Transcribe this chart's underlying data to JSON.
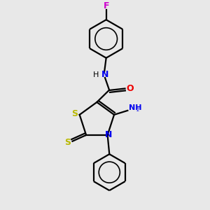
{
  "background_color": "#e8e8e8",
  "line_color": "#000000",
  "S_color": "#b8b800",
  "N_color": "#0000ee",
  "O_color": "#ee0000",
  "F_color": "#cc00cc",
  "line_width": 1.6,
  "figsize": [
    3.0,
    3.0
  ],
  "dpi": 100,
  "xlim": [
    1.5,
    8.5
  ],
  "ylim": [
    0.8,
    9.8
  ]
}
